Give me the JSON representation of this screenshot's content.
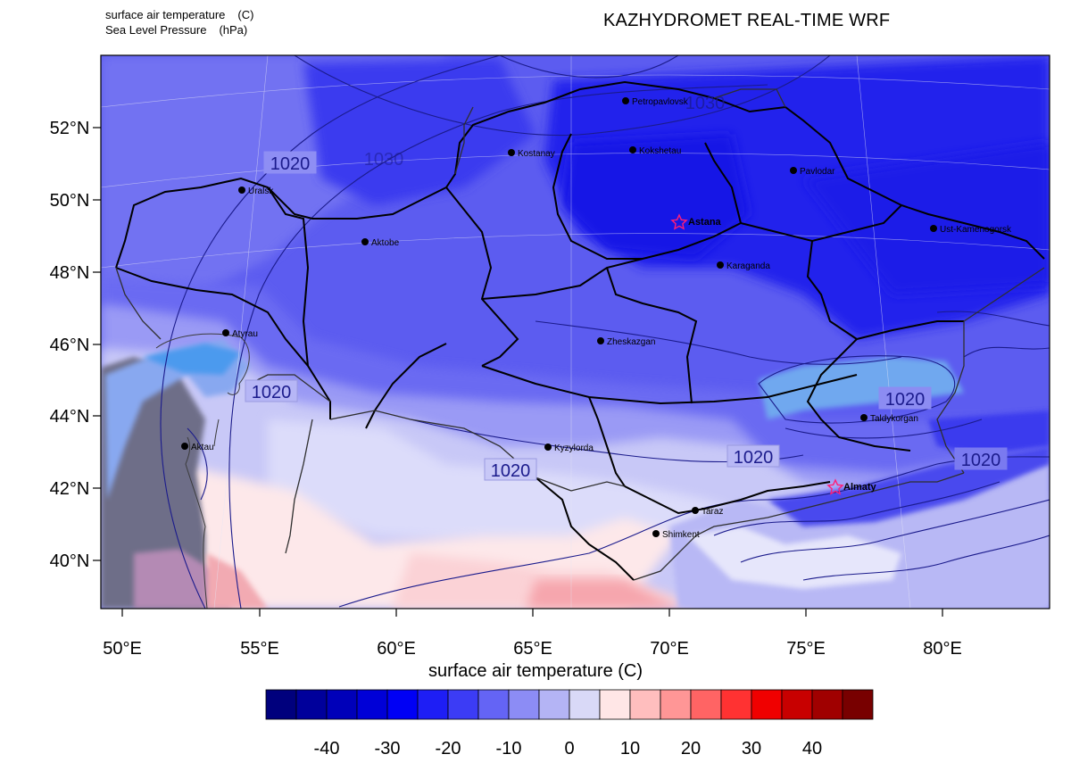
{
  "header": {
    "fields": [
      {
        "name": "surface air temperature",
        "unit": "(C)"
      },
      {
        "name": "Sea Level Pressure",
        "unit": "(hPa)"
      }
    ],
    "title": "KAZHYDROMET REAL-TIME WRF"
  },
  "map": {
    "lat_labels": [
      "52°N",
      "50°N",
      "48°N",
      "46°N",
      "44°N",
      "42°N",
      "40°N"
    ],
    "lon_labels": [
      "50°E",
      "55°E",
      "60°E",
      "65°E",
      "70°E",
      "75°E",
      "80°E"
    ],
    "isobar_labels": [
      "1020",
      "1020",
      "1020",
      "1020",
      "1020",
      "1020",
      "1030",
      "1030"
    ],
    "cities": [
      {
        "name": "Petropavlovsk",
        "capital": false
      },
      {
        "name": "Kostanay",
        "capital": false
      },
      {
        "name": "Kokshetau",
        "capital": false
      },
      {
        "name": "Pavlodar",
        "capital": false
      },
      {
        "name": "Uralsk",
        "capital": false
      },
      {
        "name": "Astana",
        "capital": true
      },
      {
        "name": "Aktobe",
        "capital": false
      },
      {
        "name": "Ust-Kamenogorsk",
        "capital": false
      },
      {
        "name": "Karaganda",
        "capital": false
      },
      {
        "name": "Atyrau",
        "capital": false
      },
      {
        "name": "Zheskazgan",
        "capital": false
      },
      {
        "name": "Taldykorgan",
        "capital": false
      },
      {
        "name": "Aktau",
        "capital": false
      },
      {
        "name": "Kyzylorda",
        "capital": false
      },
      {
        "name": "Almaty",
        "capital": true
      },
      {
        "name": "Taraz",
        "capital": false
      },
      {
        "name": "Shimkent",
        "capital": false
      }
    ]
  },
  "colorbar": {
    "title": "surface air temperature  (C)",
    "tick_labels": [
      "-40",
      "-30",
      "-20",
      "-10",
      "0",
      "10",
      "20",
      "30",
      "40"
    ],
    "colors": [
      "#00007d",
      "#00009b",
      "#0000b9",
      "#0000d7",
      "#0000f5",
      "#1e1ef5",
      "#3c3cf5",
      "#6464f5",
      "#8c8cf5",
      "#b4b4f5",
      "#d9d9f7",
      "#ffe6e6",
      "#ffbebe",
      "#ff9696",
      "#ff6464",
      "#ff3232",
      "#f00000",
      "#c80000",
      "#a00000",
      "#780000"
    ]
  }
}
